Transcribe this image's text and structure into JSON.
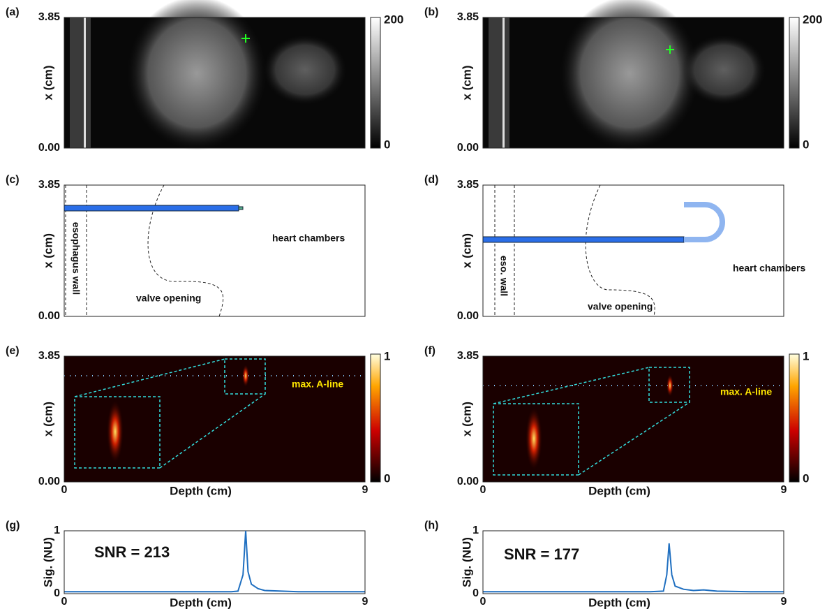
{
  "chart_data": [
    {
      "type": "image",
      "label": "(a)",
      "ylabel": "x (cm)",
      "ylim": [
        0,
        3.85
      ],
      "yticks": [
        {
          "value": 0,
          "label": "0.00"
        },
        3.85
      ],
      "colorbar": {
        "colormap": "gray",
        "lim": [
          0,
          200
        ],
        "ticks": [
          0,
          200
        ]
      },
      "annotations": []
    },
    {
      "type": "image",
      "label": "(b)",
      "ylabel": "x (cm)",
      "ylim": [
        0,
        3.85
      ],
      "yticks": [
        {
          "value": 0,
          "label": "0.00"
        },
        3.85
      ],
      "colorbar": {
        "colormap": "gray",
        "lim": [
          0,
          200
        ],
        "ticks": [
          0,
          200
        ]
      },
      "annotations": []
    },
    {
      "type": "diagram",
      "label": "(c)",
      "ylabel": "x (cm)",
      "ylim": [
        0,
        3.85
      ],
      "yticks": [
        {
          "value": 0,
          "label": "0.00"
        },
        3.85
      ],
      "annotations": [
        "esophagus wall",
        "heart chambers",
        "valve opening"
      ]
    },
    {
      "type": "diagram",
      "label": "(d)",
      "ylabel": "x (cm)",
      "ylim": [
        0,
        3.85
      ],
      "yticks": [
        {
          "value": 0,
          "label": "0.00"
        },
        3.85
      ],
      "annotations": [
        "eso. wall",
        "heart chambers",
        "valve opening"
      ]
    },
    {
      "type": "heatmap",
      "label": "(e)",
      "ylabel": "x (cm)",
      "xlabel": "Depth (cm)",
      "ylim": [
        0,
        3.85
      ],
      "yticks": [
        {
          "value": 0,
          "label": "0.00"
        },
        3.85
      ],
      "xlim": [
        0,
        9
      ],
      "xticks": [
        0,
        9
      ],
      "colorbar": {
        "colormap": "hot",
        "lim": [
          0,
          1
        ],
        "ticks": [
          0,
          1
        ]
      },
      "annotations": [
        "max. A-line"
      ]
    },
    {
      "type": "heatmap",
      "label": "(f)",
      "ylabel": "x (cm)",
      "xlabel": "Depth (cm)",
      "ylim": [
        0,
        3.85
      ],
      "yticks": [
        {
          "value": 0,
          "label": "0.00"
        },
        3.85
      ],
      "xlim": [
        0,
        9
      ],
      "xticks": [
        0,
        9
      ],
      "colorbar": {
        "colormap": "hot",
        "lim": [
          0,
          1
        ],
        "ticks": [
          0,
          1
        ]
      },
      "annotations": [
        "max. A-line"
      ]
    },
    {
      "type": "line",
      "label": "(g)",
      "ylabel": "Sig. (NU)",
      "xlabel": "Depth (cm)",
      "ylim": [
        0,
        1
      ],
      "yticks": [
        0,
        1
      ],
      "xlim": [
        0,
        9
      ],
      "xticks": [
        0,
        9
      ],
      "color": "#1f6fc0",
      "annotations": [
        "SNR = 213"
      ],
      "x": [
        0,
        1,
        2,
        3,
        4,
        5,
        5.2,
        5.35,
        5.43,
        5.5,
        5.6,
        5.8,
        6,
        6.5,
        7,
        8,
        9
      ],
      "values": [
        0.03,
        0.03,
        0.03,
        0.03,
        0.03,
        0.03,
        0.04,
        0.3,
        1,
        0.35,
        0.15,
        0.08,
        0.05,
        0.04,
        0.03,
        0.03,
        0.03
      ]
    },
    {
      "type": "line",
      "label": "(h)",
      "ylabel": "Sig. (NU)",
      "xlabel": "Depth (cm)",
      "ylim": [
        0,
        1
      ],
      "yticks": [
        0,
        1
      ],
      "xlim": [
        0,
        9
      ],
      "xticks": [
        0,
        9
      ],
      "color": "#1f6fc0",
      "annotations": [
        "SNR = 177"
      ],
      "x": [
        0,
        1,
        2,
        3,
        4,
        5,
        5.4,
        5.5,
        5.57,
        5.65,
        5.75,
        6,
        6.3,
        6.6,
        7,
        8,
        9
      ],
      "values": [
        0.03,
        0.03,
        0.03,
        0.03,
        0.03,
        0.03,
        0.04,
        0.3,
        0.8,
        0.3,
        0.12,
        0.07,
        0.05,
        0.06,
        0.04,
        0.03,
        0.03
      ]
    }
  ]
}
